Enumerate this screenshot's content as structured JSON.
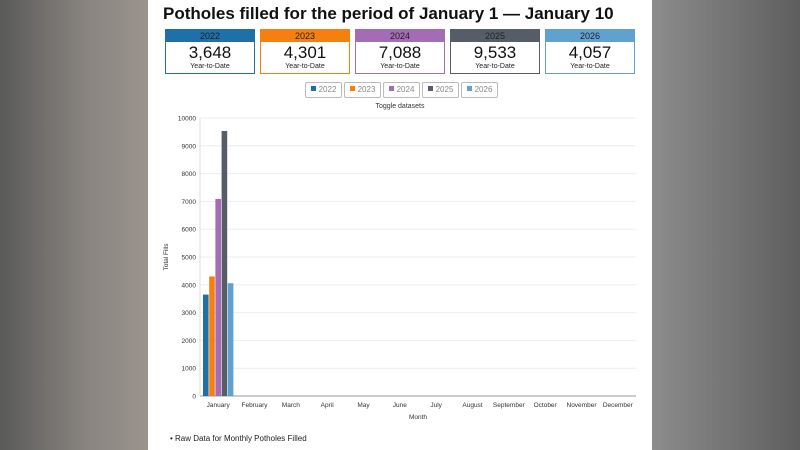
{
  "title": "Potholes filled for the period of January 1 — January 10",
  "cards": [
    {
      "year": "2022",
      "value": "3,648",
      "label": "Year-to-Date",
      "color": "#1f6fa8"
    },
    {
      "year": "2023",
      "value": "4,301",
      "label": "Year-to-Date",
      "color": "#f6800f"
    },
    {
      "year": "2024",
      "value": "7,088",
      "label": "Year-to-Date",
      "color": "#a46cb6"
    },
    {
      "year": "2025",
      "value": "9,533",
      "label": "Year-to-Date",
      "color": "#565d68"
    },
    {
      "year": "2026",
      "value": "4,057",
      "label": "Year-to-Date",
      "color": "#5fa2d0"
    }
  ],
  "toggle_label": "Toggle datasets",
  "raw_link": "Raw Data for Monthly Potholes Filled",
  "chart_data": {
    "type": "bar",
    "categories": [
      "January",
      "February",
      "March",
      "April",
      "May",
      "June",
      "July",
      "August",
      "September",
      "October",
      "November",
      "December"
    ],
    "series": [
      {
        "name": "2022",
        "color": "#1f6fa8",
        "values": [
          3648,
          null,
          null,
          null,
          null,
          null,
          null,
          null,
          null,
          null,
          null,
          null
        ]
      },
      {
        "name": "2023",
        "color": "#f6800f",
        "values": [
          4301,
          null,
          null,
          null,
          null,
          null,
          null,
          null,
          null,
          null,
          null,
          null
        ]
      },
      {
        "name": "2024",
        "color": "#a46cb6",
        "values": [
          7088,
          null,
          null,
          null,
          null,
          null,
          null,
          null,
          null,
          null,
          null,
          null
        ]
      },
      {
        "name": "2025",
        "color": "#565d68",
        "values": [
          9533,
          null,
          null,
          null,
          null,
          null,
          null,
          null,
          null,
          null,
          null,
          null
        ]
      },
      {
        "name": "2026",
        "color": "#5fa2d0",
        "values": [
          4057,
          null,
          null,
          null,
          null,
          null,
          null,
          null,
          null,
          null,
          null,
          null
        ]
      }
    ],
    "xlabel": "Month",
    "ylabel": "Total Fills",
    "ylim": [
      0,
      10000
    ],
    "yticks": [
      "0",
      "1000",
      "2000",
      "3000",
      "4000",
      "5000",
      "6000",
      "7000",
      "8000",
      "9000",
      "10000"
    ],
    "grid": true,
    "legend": "top"
  }
}
